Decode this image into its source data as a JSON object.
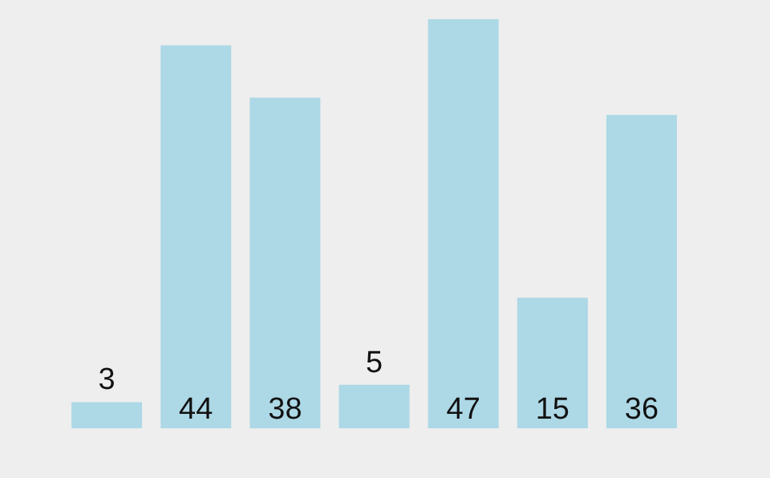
{
  "chart_data": {
    "type": "bar",
    "categories": [
      null,
      null,
      null,
      null,
      null,
      null,
      null
    ],
    "values": [
      3,
      44,
      38,
      5,
      47,
      15,
      36
    ],
    "color": "#add8e6",
    "data_labels": true
  }
}
